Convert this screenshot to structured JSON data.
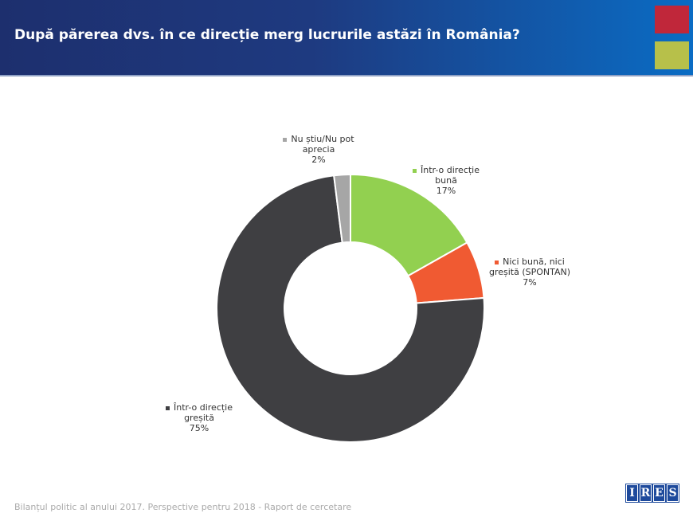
{
  "header": {
    "title": "După părerea dvs. în ce direcție merg lucrurile astăzi în România?",
    "colors": [
      "#c0273a",
      "#b7c04a"
    ]
  },
  "chart_data": {
    "type": "pie",
    "donut": true,
    "start": "top",
    "direction": "clockwise",
    "slices": [
      {
        "label_lines": [
          "Într-o direcție",
          "bună"
        ],
        "value": 17,
        "value_label": "17%",
        "color": "#92d050"
      },
      {
        "label_lines": [
          "Nici bună, nici",
          "greșită (SPONTAN)"
        ],
        "value": 7,
        "value_label": "7%",
        "color": "#f05a32"
      },
      {
        "label_lines": [
          "Într-o direcție",
          "greșită"
        ],
        "value": 75,
        "value_label": "75%",
        "color": "#3f3f42"
      },
      {
        "label_lines": [
          "Nu știu/Nu pot",
          "aprecia"
        ],
        "value": 2,
        "value_label": "2%",
        "color": "#a6a6a6"
      }
    ]
  },
  "footer": {
    "text": "Bilanțul politic al anului 2017. Perspective pentru 2018 - Raport de cercetare",
    "logo_letters": [
      "I",
      "R",
      "E",
      "S"
    ]
  }
}
